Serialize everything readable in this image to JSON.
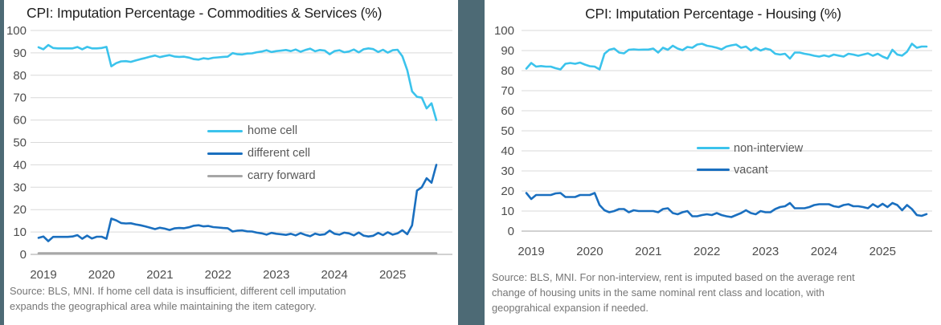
{
  "page": {
    "background": "#ffffff",
    "panel_divider_color": "#4D6A75",
    "gridline_color": "#D9D9D9",
    "zero_line_color": "#C2C2C2"
  },
  "chart_data": [
    {
      "type": "line",
      "title": "CPI: Imputation Percentage - Commodities & Services (%)",
      "xlabel": "",
      "ylabel": "",
      "ylim": [
        0,
        100
      ],
      "grid": true,
      "legend_position": "center",
      "x_unit": "monthly, Jan 2019 - Nov 2025",
      "x_ticks": [
        "2019",
        "2020",
        "2021",
        "2022",
        "2023",
        "2024",
        "2025"
      ],
      "y_ticks": [
        100,
        90,
        80,
        70,
        60,
        50,
        40,
        30,
        20,
        10,
        0
      ],
      "series": [
        {
          "name": "home cell",
          "color": "#3BC3EC",
          "values": [
            92.5,
            91.6,
            93.5,
            92.2,
            92,
            92,
            92,
            92,
            92.6,
            91.6,
            92.7,
            92,
            92,
            92.2,
            92.7,
            84,
            85.4,
            86.2,
            86.3,
            86,
            86.6,
            87.2,
            87.7,
            88.3,
            88.8,
            88.1,
            88.6,
            89,
            88.4,
            88.2,
            88.3,
            87.9,
            87.2,
            87,
            87.6,
            87.3,
            87.8,
            88,
            88.2,
            88.3,
            89.9,
            89.4,
            89.3,
            89.7,
            89.8,
            90.3,
            90.6,
            91.2,
            90.4,
            90.8,
            91,
            91.3,
            90.8,
            91.5,
            90.5,
            91.3,
            91.9,
            90.7,
            91.3,
            91,
            89.4,
            90.8,
            91.2,
            90.3,
            90.6,
            91.5,
            90.2,
            91.6,
            92,
            91.7,
            90.4,
            91.4,
            90.1,
            91.2,
            91.4,
            88.5,
            82.3,
            72.8,
            70.4,
            70,
            65.2,
            67.5,
            60
          ]
        },
        {
          "name": "different cell",
          "color": "#1A6FBF",
          "values": [
            7.4,
            8,
            5.9,
            7.8,
            7.8,
            7.8,
            7.8,
            8,
            8.6,
            7,
            8.4,
            7.1,
            7.9,
            7.9,
            7,
            16,
            15.2,
            14,
            13.8,
            13.9,
            13.4,
            13,
            12.5,
            11.9,
            11.3,
            11.9,
            11.5,
            10.9,
            11.6,
            11.8,
            11.7,
            12.1,
            12.8,
            13,
            12.5,
            12.7,
            12.2,
            12,
            11.8,
            11.7,
            10.2,
            10.6,
            10.7,
            10.3,
            10.2,
            9.7,
            9.4,
            8.8,
            9.6,
            9.2,
            9,
            8.7,
            9.2,
            8.5,
            9.5,
            8.7,
            8.1,
            9.3,
            8.7,
            9,
            10.6,
            9.2,
            8.8,
            9.7,
            9.4,
            8.5,
            9.8,
            8.4,
            8,
            8.3,
            9.6,
            8.6,
            9.9,
            8.8,
            9.4,
            10.8,
            9,
            13,
            28.5,
            30,
            34,
            32,
            40
          ]
        },
        {
          "name": "carry forward",
          "color": "#A6A6A6",
          "constant": 0.5,
          "points": 83
        }
      ],
      "source": [
        "Source: BLS, MNI. If home cell data is insufficient, different cell imputation",
        "expands the geographical area while maintaining the item category."
      ]
    },
    {
      "type": "line",
      "title": "CPI: Imputation Percentage - Housing (%)",
      "xlabel": "",
      "ylabel": "",
      "ylim": [
        0,
        100
      ],
      "grid": true,
      "legend_position": "center",
      "x_unit": "monthly, Jan 2019 - Nov 2025",
      "x_ticks": [
        "2019",
        "2020",
        "2021",
        "2022",
        "2023",
        "2024",
        "2025"
      ],
      "y_ticks": [
        100,
        90,
        80,
        70,
        60,
        50,
        40,
        30,
        20,
        10,
        0
      ],
      "series": [
        {
          "name": "non-interview",
          "color": "#3BC3EC",
          "values": [
            81,
            83.8,
            82,
            82.3,
            82,
            82,
            81.2,
            80.6,
            83.4,
            83.8,
            83.4,
            84,
            83,
            82.2,
            82,
            80.6,
            88.4,
            90.4,
            91,
            89,
            88.6,
            90.4,
            90.6,
            90.4,
            90.5,
            90.5,
            91,
            89,
            91.4,
            90.4,
            92.4,
            91,
            90.2,
            91.8,
            91.4,
            93,
            93.4,
            92.4,
            92,
            91.4,
            90.6,
            92,
            92.6,
            93,
            91.4,
            92,
            90,
            91.4,
            90,
            91,
            90.4,
            88.4,
            88,
            88.4,
            86,
            89,
            89,
            88.4,
            88,
            87.4,
            87,
            87.6,
            87,
            88,
            87.5,
            87,
            88.4,
            88,
            87.4,
            88,
            88.6,
            87.4,
            88.4,
            87,
            86,
            90.4,
            88,
            87.5,
            89.4,
            93.4,
            91.4,
            92,
            92
          ]
        },
        {
          "name": "vacant",
          "color": "#1A6FBF",
          "values": [
            19,
            16,
            18,
            18,
            18,
            18,
            18.8,
            19,
            17,
            17,
            17,
            18,
            18,
            18,
            19,
            13,
            10.4,
            9.4,
            10,
            11,
            11,
            9.4,
            10.4,
            10,
            10,
            10,
            10,
            9.4,
            11,
            11.4,
            9,
            8.4,
            9.4,
            10,
            7.4,
            7.4,
            8,
            8.4,
            8,
            9,
            8,
            7.4,
            7,
            8,
            9,
            10.4,
            9,
            8.4,
            10,
            9.4,
            9.4,
            11,
            12,
            12.4,
            14,
            11.4,
            11.4,
            11.4,
            12,
            13,
            13.4,
            13.4,
            13.4,
            12.4,
            12,
            13,
            13.4,
            12.4,
            12.4,
            12,
            11.4,
            13.4,
            12,
            13.6,
            12,
            14,
            13,
            10.4,
            13,
            11,
            8,
            7.6,
            8.5
          ]
        }
      ],
      "source": [
        "Source: BLS, MNI. For non-interview, rent is imputed based on the average rent",
        "change of housing units in the same nominal rent class and location, with",
        "geopgrahical expansion if needed."
      ]
    }
  ]
}
